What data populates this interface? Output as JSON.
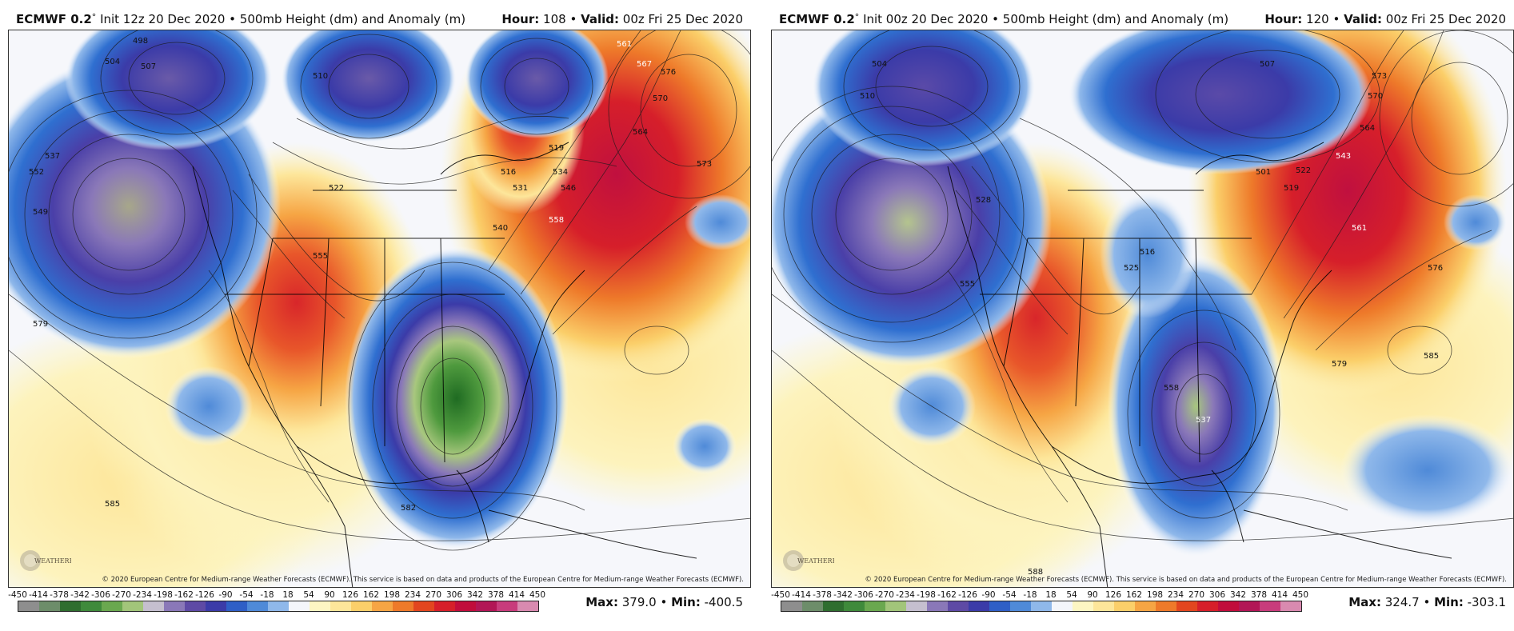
{
  "panels": [
    {
      "model": "ECMWF 0.2",
      "deg": "°",
      "init": "Init 12z 20 Dec 2020",
      "field": "• 500mb Height (dm) and Anomaly (m)",
      "hour_label": "Hour:",
      "hour": "108",
      "valid_label": "Valid:",
      "valid": "00z Fri 25 Dec 2020",
      "max_label": "Max:",
      "max": "379.0",
      "min_label": "Min:",
      "min": "-400.5",
      "contour_labels": [
        "498",
        "504",
        "507",
        "510",
        "516",
        "519",
        "522",
        "531",
        "534",
        "537",
        "540",
        "546",
        "549",
        "552",
        "555",
        "558",
        "561",
        "564",
        "567",
        "570",
        "573",
        "576",
        "579",
        "582",
        "585"
      ]
    },
    {
      "model": "ECMWF 0.2",
      "deg": "°",
      "init": "Init 00z 20 Dec 2020",
      "field": "• 500mb Height (dm) and Anomaly (m)",
      "hour_label": "Hour:",
      "hour": "120",
      "valid_label": "Valid:",
      "valid": "00z Fri 25 Dec 2020",
      "max_label": "Max:",
      "max": "324.7",
      "min_label": "Min:",
      "min": "-303.1",
      "contour_labels": [
        "501",
        "504",
        "507",
        "510",
        "516",
        "519",
        "522",
        "525",
        "528",
        "537",
        "543",
        "555",
        "558",
        "561",
        "564",
        "570",
        "573",
        "576",
        "579",
        "585",
        "588"
      ]
    }
  ],
  "copyright": "© 2020 European Centre for Medium-range Weather Forecasts (ECMWF). This service is based on data and products of the European Centre for Medium-range Weather Forecasts (ECMWF).",
  "logo_text": "WEATHERBELL",
  "colorbar": {
    "ticks": [
      "-450",
      "-414",
      "-378",
      "-342",
      "-306",
      "-270",
      "-234",
      "-198",
      "-162",
      "-126",
      "-90",
      "-54",
      "-18",
      "18",
      "54",
      "90",
      "126",
      "162",
      "198",
      "234",
      "270",
      "306",
      "342",
      "378",
      "414",
      "450"
    ],
    "colors": [
      "#8e8e8e",
      "#6d8d6a",
      "#2f6e2f",
      "#3f8a3b",
      "#6aa84f",
      "#a2c57a",
      "#c5bfcf",
      "#8a78b8",
      "#5e4aa5",
      "#3b3ba8",
      "#2f5fc6",
      "#4f8ad8",
      "#8fb8ea",
      "#f4f6fb",
      "#fdf6c3",
      "#fde69a",
      "#fbcf6a",
      "#f6a544",
      "#ee7a2a",
      "#e2461f",
      "#d61f2a",
      "#c10d3c",
      "#b21656",
      "#c83c7c",
      "#d98ab0"
    ]
  }
}
